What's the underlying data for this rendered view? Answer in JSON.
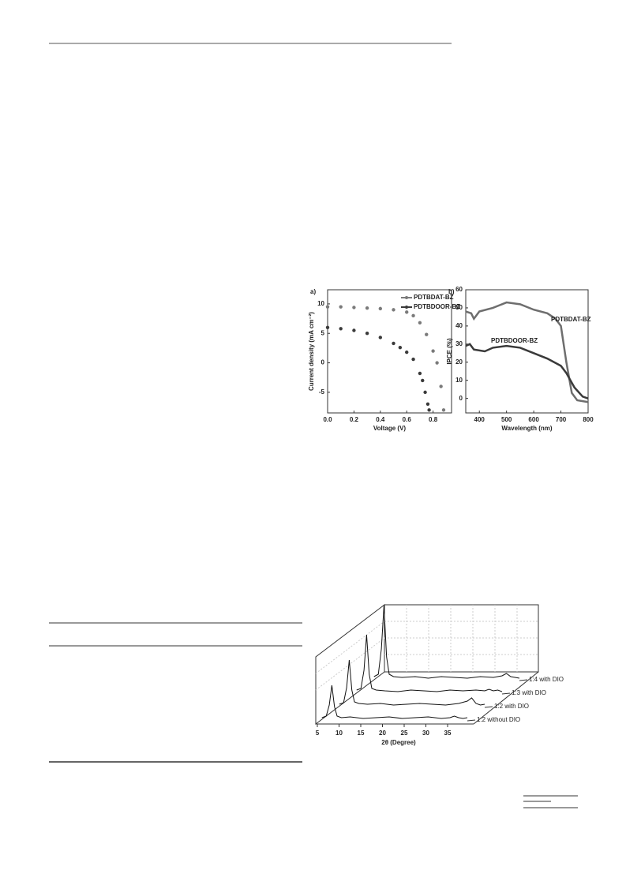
{
  "figure_1": {
    "panel_a": {
      "type": "scatter",
      "label": "a)",
      "x_label": "Voltage (V)",
      "y_label": "Current density (mA cm⁻²)",
      "xlim": [
        0,
        0.94
      ],
      "ylim": [
        -8.5,
        12.4
      ],
      "xticks": [
        {
          "value": 0,
          "label": "0.0"
        },
        0.2,
        0.4,
        0.6,
        0.8
      ],
      "yticks": [
        -5,
        0,
        5,
        10
      ],
      "series": [
        {
          "name": "PDTBDAT-BZ",
          "color": "#7a7a7a",
          "x": [
            0,
            0.1,
            0.2,
            0.3,
            0.4,
            0.5,
            0.6,
            0.65,
            0.7,
            0.75,
            0.8,
            0.83,
            0.86,
            0.88
          ],
          "values": [
            9.5,
            9.5,
            9.4,
            9.3,
            9.2,
            9.0,
            8.6,
            8.0,
            6.8,
            4.8,
            2.0,
            0,
            -4,
            -8
          ]
        },
        {
          "name": "PDTBDOOR-BZ",
          "color": "#3a3a3a",
          "x": [
            0,
            0.1,
            0.2,
            0.3,
            0.4,
            0.5,
            0.55,
            0.6,
            0.65,
            0.7,
            0.72,
            0.74,
            0.76,
            0.77
          ],
          "values": [
            6.0,
            5.8,
            5.5,
            5.0,
            4.3,
            3.3,
            2.6,
            1.8,
            0.6,
            -1.8,
            -3,
            -5,
            -7,
            -8
          ]
        }
      ]
    },
    "panel_b": {
      "type": "line",
      "label": "b)",
      "x_label": "Wavelength (nm)",
      "y_label": "IPCE (%)",
      "xlim": [
        350,
        800
      ],
      "ylim": [
        -8,
        60
      ],
      "xticks": [
        400,
        500,
        600,
        700,
        800
      ],
      "yticks": [
        0,
        10,
        20,
        30,
        40,
        50,
        60
      ],
      "series": [
        {
          "name": "PDTBDAT-BZ",
          "color": "#6e6e6e",
          "x": [
            350,
            370,
            380,
            400,
            450,
            500,
            550,
            600,
            650,
            680,
            700,
            720,
            740,
            760,
            800
          ],
          "values": [
            48,
            47,
            44,
            48,
            50,
            53,
            52,
            49,
            47,
            44,
            40,
            20,
            3,
            -1,
            -2
          ]
        },
        {
          "name": "PDTBDOOR-BZ",
          "color": "#3a3a3a",
          "x": [
            350,
            365,
            380,
            420,
            450,
            500,
            550,
            600,
            650,
            700,
            720,
            750,
            780,
            800
          ],
          "values": [
            29,
            30,
            27,
            26,
            28,
            29,
            28,
            25,
            22,
            18,
            14,
            6,
            1,
            0
          ]
        }
      ]
    }
  },
  "figure_2": {
    "type": "line",
    "x_label": "2θ (Degree)",
    "xticks": [
      5,
      10,
      15,
      20,
      25,
      30,
      35
    ],
    "x": [
      3.5,
      4.5,
      5.2,
      5.8,
      6.4,
      7,
      8,
      10,
      13,
      16,
      19,
      22,
      25,
      28,
      31,
      33,
      34,
      35,
      36,
      37
    ],
    "series": [
      {
        "name": "1:2 without DIO",
        "values": [
          4,
          6,
          20,
          45,
          18,
          6,
          4,
          5,
          3,
          4,
          5,
          3,
          4,
          5,
          3,
          4,
          6,
          4,
          3,
          4
        ]
      },
      {
        "name": "1:2 with DIO",
        "values": [
          4,
          6,
          25,
          60,
          22,
          7,
          5,
          4,
          5,
          3,
          4,
          5,
          4,
          3,
          5,
          8,
          12,
          5,
          3,
          4
        ]
      },
      {
        "name": "1:3 with DIO",
        "values": [
          5,
          7,
          30,
          75,
          25,
          7,
          5,
          4,
          3,
          5,
          4,
          3,
          5,
          4,
          5,
          4,
          6,
          4,
          5,
          3
        ]
      },
      {
        "name": "1:4 with DIO",
        "values": [
          5,
          8,
          40,
          95,
          30,
          8,
          5,
          4,
          5,
          3,
          5,
          4,
          3,
          5,
          4,
          6,
          9,
          5,
          4,
          3
        ]
      }
    ]
  }
}
